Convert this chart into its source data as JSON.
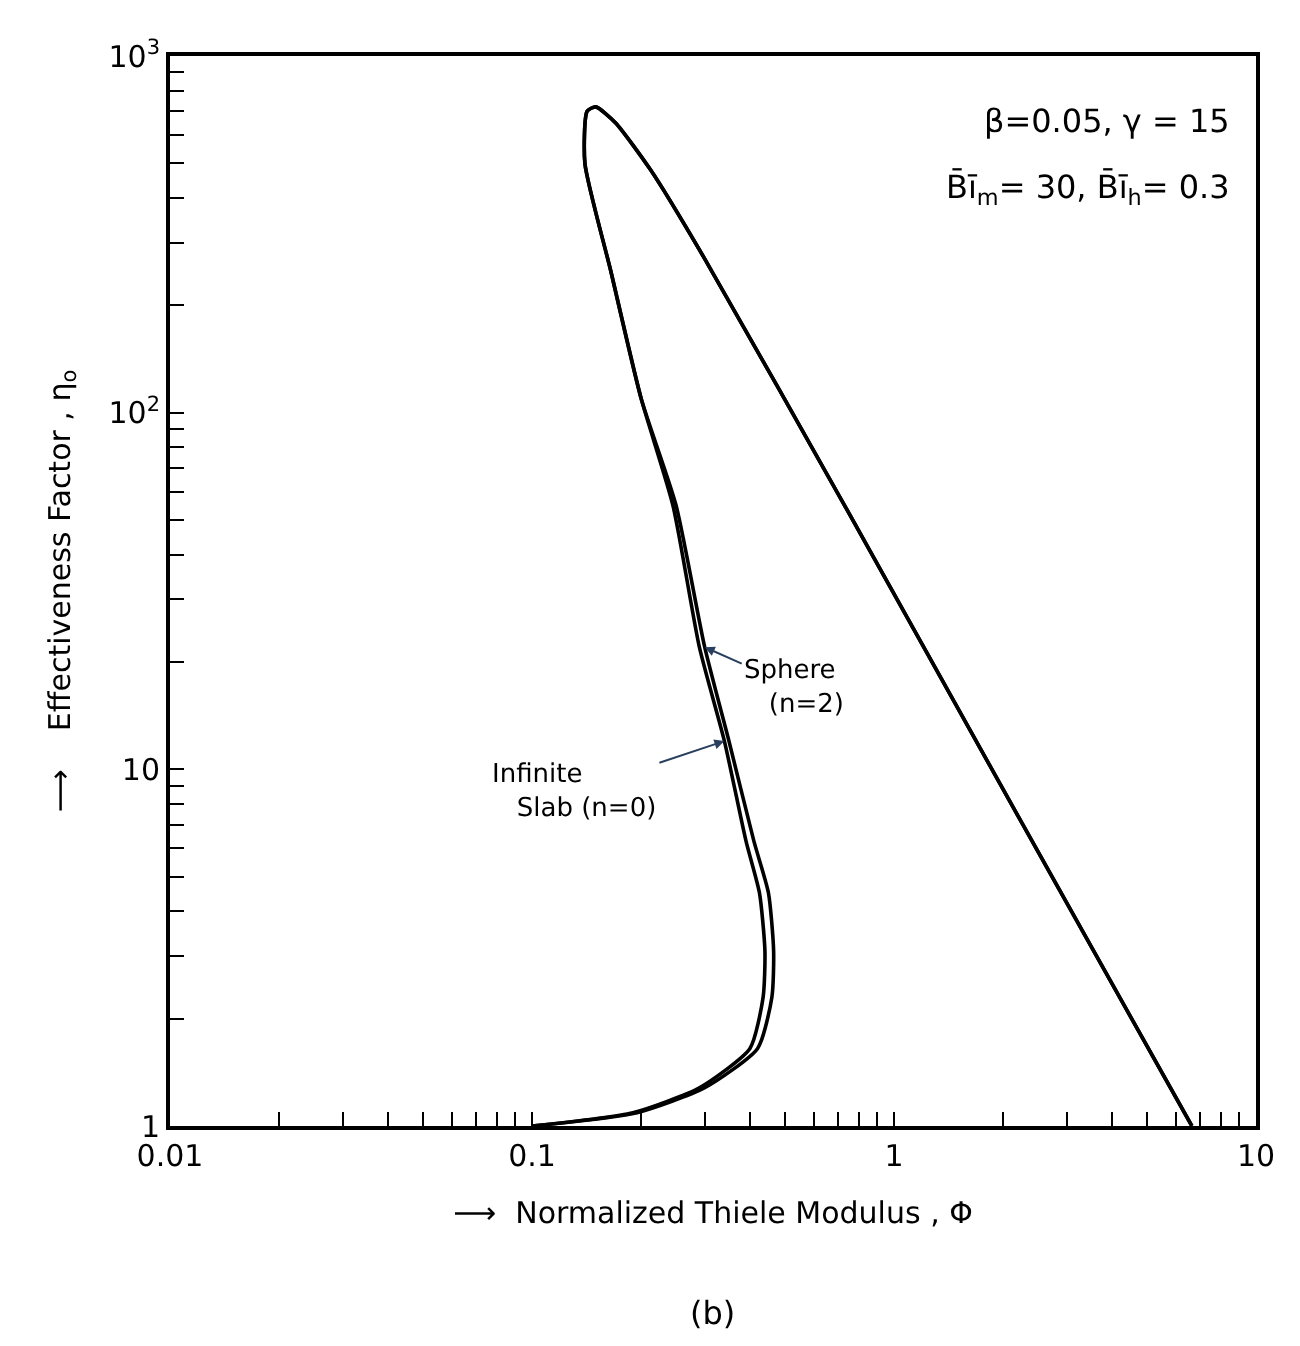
{
  "chart_data": {
    "type": "line",
    "xlabel": "⟶  Normalized Thiele Modulus , Φ",
    "ylabel": "⟶    Effectiveness Factor , η$_{o}$",
    "log": "xy",
    "marker": "none",
    "line_style": "solid",
    "xlim": [
      0.01,
      10
    ],
    "ylim": [
      1,
      1000
    ],
    "xticks": [
      {
        "value": 0.01,
        "label": "0.01"
      },
      {
        "value": 0.02,
        "label": null
      },
      {
        "value": 0.03,
        "label": null
      },
      {
        "value": 0.04,
        "label": null
      },
      {
        "value": 0.05,
        "label": null
      },
      {
        "value": 0.06,
        "label": null
      },
      {
        "value": 0.07,
        "label": null
      },
      {
        "value": 0.08,
        "label": null
      },
      {
        "value": 0.09,
        "label": null
      },
      {
        "value": 0.1,
        "label": "0.1"
      },
      {
        "value": 0.2,
        "label": null
      },
      {
        "value": 0.3,
        "label": null
      },
      {
        "value": 0.4,
        "label": null
      },
      {
        "value": 0.5,
        "label": null
      },
      {
        "value": 0.6,
        "label": null
      },
      {
        "value": 0.7,
        "label": null
      },
      {
        "value": 0.8,
        "label": null
      },
      {
        "value": 0.9,
        "label": null
      },
      1,
      {
        "value": 2,
        "label": null
      },
      {
        "value": 3,
        "label": null
      },
      {
        "value": 4,
        "label": null
      },
      {
        "value": 5,
        "label": null
      },
      {
        "value": 6,
        "label": null
      },
      {
        "value": 7,
        "label": null
      },
      {
        "value": 8,
        "label": null
      },
      {
        "value": 9,
        "label": null
      },
      10
    ],
    "yticks": [
      1,
      {
        "value": 2,
        "label": null
      },
      {
        "value": 3,
        "label": null
      },
      {
        "value": 4,
        "label": null
      },
      {
        "value": 5,
        "label": null
      },
      {
        "value": 6,
        "label": null
      },
      {
        "value": 7,
        "label": null
      },
      {
        "value": 8,
        "label": null
      },
      {
        "value": 9,
        "label": null
      },
      10,
      {
        "value": 20,
        "label": null
      },
      {
        "value": 30,
        "label": null
      },
      {
        "value": 40,
        "label": null
      },
      {
        "value": 50,
        "label": null
      },
      {
        "value": 60,
        "label": null
      },
      {
        "value": 70,
        "label": null
      },
      {
        "value": 80,
        "label": null
      },
      {
        "value": 90,
        "label": null
      },
      {
        "value": 100,
        "label": "10$^{2}$"
      },
      {
        "value": 200,
        "label": null
      },
      {
        "value": 300,
        "label": null
      },
      {
        "value": 400,
        "label": null
      },
      {
        "value": 500,
        "label": null
      },
      {
        "value": 600,
        "label": null
      },
      {
        "value": 700,
        "label": null
      },
      {
        "value": 800,
        "label": null
      },
      {
        "value": 900,
        "label": null
      },
      {
        "value": 1000,
        "label": "10$^{3}$"
      }
    ],
    "series": [
      {
        "color": "#000000",
        "x": [
          0.1,
          0.195,
          0.3,
          0.42,
          0.46,
          0.465,
          0.45,
          0.41,
          0.35,
          0.3,
          0.25,
          0.2,
          0.165,
          0.14,
          0.142,
          0.15,
          0.17,
          0.213,
          0.3,
          0.73,
          2.2,
          6.65
        ],
        "values": [
          1,
          1.09,
          1.28,
          1.65,
          2.3,
          3.1,
          4.5,
          6.3,
          12,
          22,
          55,
          110,
          250,
          500,
          700,
          720,
          650,
          478,
          270,
          55,
          7.4,
          1
        ]
      },
      {
        "color": "#000000",
        "x": [
          0.1,
          0.19,
          0.29,
          0.4,
          0.435,
          0.44,
          0.425,
          0.39,
          0.34,
          0.29,
          0.245,
          0.2,
          0.165,
          0.14,
          0.142,
          0.15,
          0.17,
          0.213,
          0.3,
          0.73,
          2.2,
          6.65
        ],
        "values": [
          1,
          1.09,
          1.28,
          1.65,
          2.3,
          3.1,
          4.5,
          6.3,
          12,
          22,
          55,
          110,
          250,
          500,
          700,
          720,
          650,
          478,
          270,
          55,
          7.4,
          1
        ]
      }
    ],
    "annotations": [
      {
        "text": "Sphere\n   (n=2)",
        "x": 0.3,
        "y": 22
      },
      {
        "text": "Infinite\n   Slab (n=0)",
        "x": 0.34,
        "y": 12
      },
      "β=0.05, γ = 15",
      "B̄ī$_{m}$= 30, B̄ī$_{h}$= 0.3",
      "(b)"
    ]
  }
}
